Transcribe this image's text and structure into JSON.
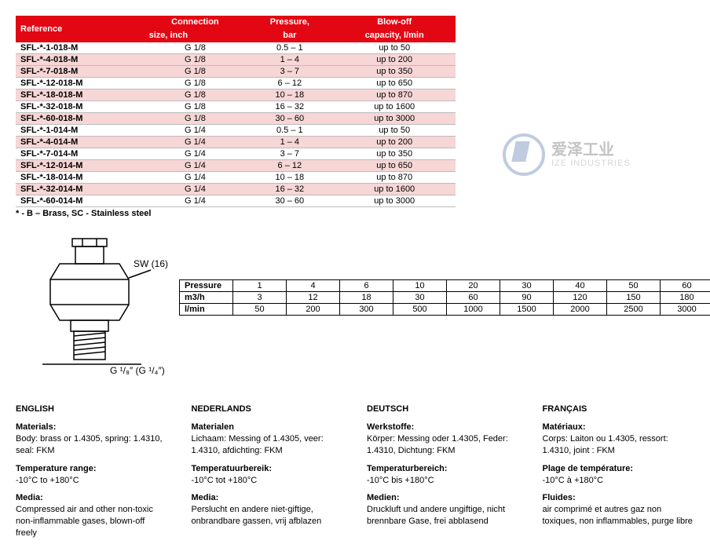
{
  "mainTable": {
    "headers": {
      "ref": "Reference",
      "conn1": "Connection",
      "conn2": "size, inch",
      "press1": "Pressure,",
      "press2": "bar",
      "blow1": "Blow-off",
      "blow2": "capacity, l/min"
    },
    "rows": [
      {
        "ref": "SFL-*-1-018-M",
        "conn": "G 1/8",
        "press": "0.5 – 1",
        "blow": "up to 50",
        "alt": false
      },
      {
        "ref": "SFL-*-4-018-M",
        "conn": "G 1/8",
        "press": "1 – 4",
        "blow": "up to 200",
        "alt": true
      },
      {
        "ref": "SFL-*-7-018-M",
        "conn": "G 1/8",
        "press": "3 – 7",
        "blow": "up to 350",
        "alt": true
      },
      {
        "ref": "SFL-*-12-018-M",
        "conn": "G 1/8",
        "press": "6 – 12",
        "blow": "up to 650",
        "alt": false
      },
      {
        "ref": "SFL-*-18-018-M",
        "conn": "G 1/8",
        "press": "10 – 18",
        "blow": "up to 870",
        "alt": true
      },
      {
        "ref": "SFL-*-32-018-M",
        "conn": "G 1/8",
        "press": "16 – 32",
        "blow": "up to 1600",
        "alt": false
      },
      {
        "ref": "SFL-*-60-018-M",
        "conn": "G 1/8",
        "press": "30 – 60",
        "blow": "up to 3000",
        "alt": true
      },
      {
        "ref": "SFL-*-1-014-M",
        "conn": "G 1/4",
        "press": "0.5 – 1",
        "blow": "up to 50",
        "alt": false
      },
      {
        "ref": "SFL-*-4-014-M",
        "conn": "G 1/4",
        "press": "1 – 4",
        "blow": "up to 200",
        "alt": true
      },
      {
        "ref": "SFL-*-7-014-M",
        "conn": "G 1/4",
        "press": "3 – 7",
        "blow": "up to 350",
        "alt": false
      },
      {
        "ref": "SFL-*-12-014-M",
        "conn": "G 1/4",
        "press": "6 – 12",
        "blow": "up to 650",
        "alt": true
      },
      {
        "ref": "SFL-*-18-014-M",
        "conn": "G 1/4",
        "press": "10 – 18",
        "blow": "up to 870",
        "alt": false
      },
      {
        "ref": "SFL-*-32-014-M",
        "conn": "G 1/4",
        "press": "16 – 32",
        "blow": "up to 1600",
        "alt": true
      },
      {
        "ref": "SFL-*-60-014-M",
        "conn": "G 1/4",
        "press": "30 – 60",
        "blow": "up to 3000",
        "alt": false
      }
    ],
    "footnote": "* - B – Brass, SC - Stainless steel"
  },
  "diagram": {
    "sw_label": "SW (16)",
    "thread_label": "G ¹/₈″ (G ¹/₄″)"
  },
  "pressureTable": {
    "rows": [
      {
        "label": "Pressure",
        "vals": [
          "1",
          "4",
          "6",
          "10",
          "20",
          "30",
          "40",
          "50",
          "60"
        ]
      },
      {
        "label": "m3/h",
        "vals": [
          "3",
          "12",
          "18",
          "30",
          "60",
          "90",
          "120",
          "150",
          "180"
        ]
      },
      {
        "label": "l/min",
        "vals": [
          "50",
          "200",
          "300",
          "500",
          "1000",
          "1500",
          "2000",
          "2500",
          "3000"
        ]
      }
    ]
  },
  "lang": {
    "en": {
      "title": "ENGLISH",
      "mat_t": "Materials:",
      "mat": "Body: brass or 1.4305, spring: 1.4310, seal: FKM",
      "temp_t": "Temperature range:",
      "temp": "-10°C to +180°C",
      "med_t": "Media:",
      "med": "Compressed air and other non-toxic non-inflammable gases, blown-off freely"
    },
    "nl": {
      "title": "NEDERLANDS",
      "mat_t": "Materialen",
      "mat": "Lichaam: Messing of 1.4305, veer: 1.4310, afdichting: FKM",
      "temp_t": "Temperatuurbereik:",
      "temp": "-10°C tot +180°C",
      "med_t": "Media:",
      "med": "Perslucht en andere niet-giftige, onbrandbare gassen, vrij afblazen"
    },
    "de": {
      "title": "DEUTSCH",
      "mat_t": "Werkstoffe:",
      "mat": "Körper: Messing oder 1.4305, Feder: 1.4310, Dichtung: FKM",
      "temp_t": "Temperaturbereich:",
      "temp": "-10°C bis +180°C",
      "med_t": "Medien:",
      "med": "Druckluft und andere ungiftige, nicht brennbare Gase, frei abblasend"
    },
    "fr": {
      "title": "FRANÇAIS",
      "mat_t": "Matériaux:",
      "mat": "Corps: Laiton ou 1.4305, ressort: 1.4310, joint : FKM",
      "temp_t": "Plage de température:",
      "temp": "-10°C à +180°C",
      "med_t": "Fluides:",
      "med": "air comprimé et autres gaz non toxiques, non inflammables, purge libre"
    }
  },
  "watermark": {
    "cn": "爱泽工业",
    "en": "IZE INDUSTRIES"
  },
  "colors": {
    "headerBg": "#e30613",
    "altRowBg": "#f7d6d6",
    "border": "#bbbbbb",
    "text": "#000000"
  }
}
